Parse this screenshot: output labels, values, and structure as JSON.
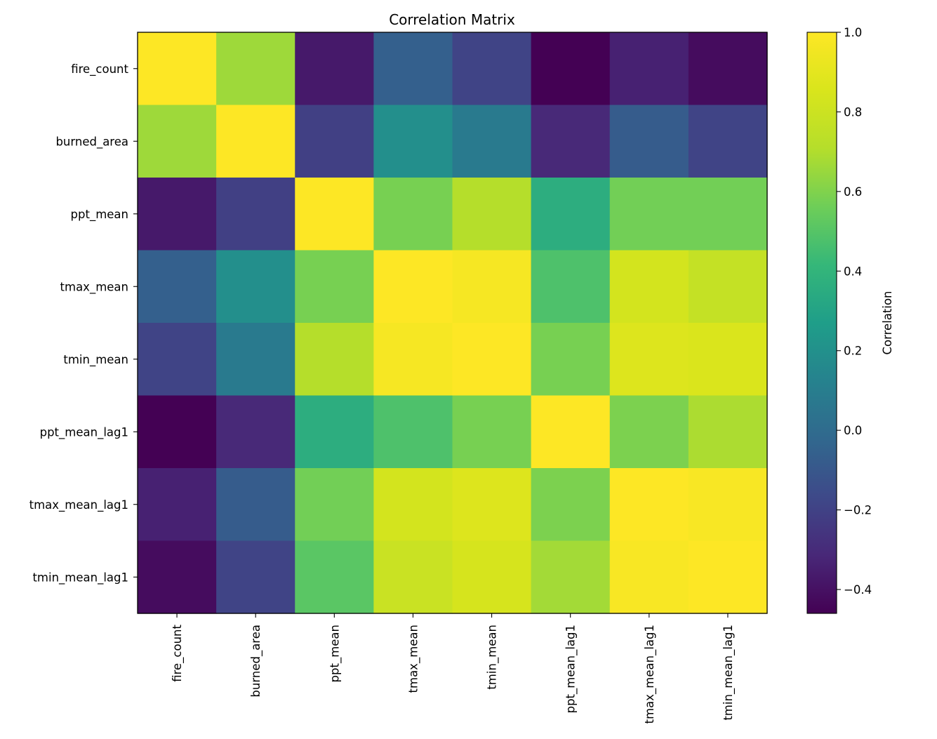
{
  "chart_data": {
    "type": "heatmap",
    "title": "Correlation Matrix",
    "x_labels": [
      "fire_count",
      "burned_area",
      "ppt_mean",
      "tmax_mean",
      "tmin_mean",
      "ppt_mean_lag1",
      "tmax_mean_lag1",
      "tmin_mean_lag1"
    ],
    "y_labels": [
      "fire_count",
      "burned_area",
      "ppt_mean",
      "tmax_mean",
      "tmin_mean",
      "ppt_mean_lag1",
      "tmax_mean_lag1",
      "tmin_mean_lag1"
    ],
    "values": [
      [
        1.0,
        0.66,
        -0.37,
        -0.06,
        -0.19,
        -0.46,
        -0.34,
        -0.42
      ],
      [
        0.66,
        1.0,
        -0.21,
        0.19,
        0.08,
        -0.31,
        -0.08,
        -0.19
      ],
      [
        -0.37,
        -0.21,
        1.0,
        0.58,
        0.71,
        0.36,
        0.57,
        0.57
      ],
      [
        -0.06,
        0.19,
        0.58,
        1.0,
        0.97,
        0.48,
        0.83,
        0.77
      ],
      [
        -0.19,
        0.08,
        0.71,
        0.97,
        1.0,
        0.58,
        0.87,
        0.86
      ],
      [
        -0.46,
        -0.31,
        0.36,
        0.48,
        0.58,
        1.0,
        0.59,
        0.69
      ],
      [
        -0.34,
        -0.08,
        0.57,
        0.83,
        0.87,
        0.59,
        1.0,
        0.98
      ],
      [
        -0.42,
        -0.19,
        0.51,
        0.79,
        0.84,
        0.67,
        0.98,
        1.0
      ]
    ],
    "colormap": "viridis",
    "colorbar": {
      "label": "Correlation",
      "range": [
        -0.46,
        1.0
      ],
      "ticks": [
        1.0,
        0.8,
        0.6,
        0.4,
        0.2,
        0.0,
        -0.2,
        -0.4
      ],
      "tick_labels": [
        "1.0",
        "0.8",
        "0.6",
        "0.4",
        "0.2",
        "0.0",
        "−0.2",
        "−0.4"
      ],
      "position": "right"
    }
  }
}
